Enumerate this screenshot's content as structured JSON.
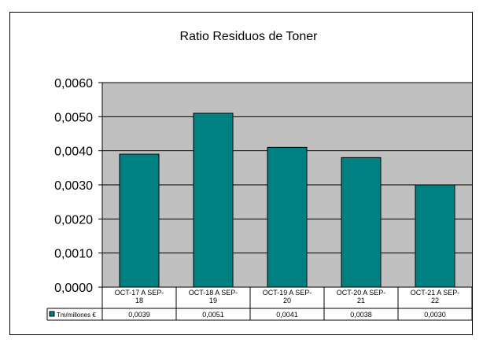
{
  "chart_data": {
    "type": "bar",
    "title": "Ratio Residuos de Toner",
    "categories": [
      [
        "OCT-17 A SEP-",
        "18"
      ],
      [
        "OCT-18 A SEP-",
        "19"
      ],
      [
        "OCT-19 A SEP-",
        "20"
      ],
      [
        "OCT-20 A SEP-",
        "21"
      ],
      [
        "OCT-21 A SEP-",
        "22"
      ]
    ],
    "series": [
      {
        "name": "Tm/millones €",
        "values": [
          0.0039,
          0.0051,
          0.0041,
          0.0038,
          0.003
        ],
        "value_labels": [
          "0,0039",
          "0,0051",
          "0,0041",
          "0,0038",
          "0,0030"
        ],
        "color": "#008080"
      }
    ],
    "ylim": [
      0,
      0.006
    ],
    "yticks": [
      "0,0000",
      "0,0010",
      "0,0020",
      "0,0030",
      "0,0040",
      "0,0050",
      "0,0060"
    ],
    "plot_background": "#c0c0c0",
    "grid": true,
    "legend": "data-table"
  }
}
